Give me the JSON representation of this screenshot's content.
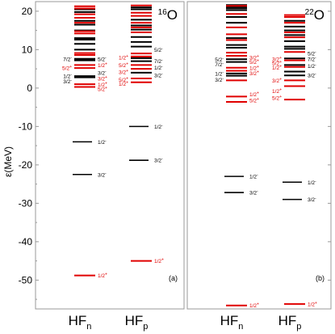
{
  "figure": {
    "y_axis_label": "ε(MeV)",
    "y_ticks": [
      "20",
      "10",
      "0",
      "-10",
      "-20",
      "-30",
      "-40",
      "-50"
    ],
    "colors": {
      "neutral": "#000000",
      "positive_parity": "#e00000",
      "frame": "#999999"
    }
  },
  "chart_data": {
    "type": "scatter",
    "ylim": [
      -57.5,
      22.5
    ],
    "panels": [
      {
        "id": "a",
        "tag": "(a)",
        "nucleus_mass": "16",
        "nucleus_symbol": "O",
        "columns": [
          {
            "id": "n",
            "label_main": "HF",
            "label_sub": "n",
            "levels_black": [
              20.5,
              19.8,
              17.5,
              16.5,
              15.0,
              13.0,
              12.6,
              11.5,
              10.0,
              7.6,
              7.2,
              3.1,
              2.8
            ],
            "levels_red": [
              21.3,
              20.7,
              19.2,
              18.3,
              17.0,
              14.8,
              14.2,
              9.1,
              8.6,
              6.0,
              5.2,
              1.0,
              0.3,
              -48.8
            ],
            "labels": [
              {
                "text": "7/2",
                "sup": "-",
                "y": 7.6,
                "side": "left",
                "color": "black"
              },
              {
                "text": "5/2",
                "sup": "-",
                "y": 7.6,
                "side": "right",
                "color": "black"
              },
              {
                "text": "5/2",
                "sup": "+",
                "y": 5.2,
                "side": "left",
                "color": "red"
              },
              {
                "text": "1/2",
                "sup": "+",
                "y": 6.0,
                "side": "right",
                "color": "red"
              },
              {
                "text": "1/2",
                "sup": "-",
                "y": 3.1,
                "side": "left",
                "color": "black"
              },
              {
                "text": "3/2",
                "sup": "-",
                "y": 4.0,
                "side": "right",
                "color": "black"
              },
              {
                "text": "3/2",
                "sup": "-",
                "y": 1.8,
                "side": "left",
                "color": "black"
              },
              {
                "text": "3/2",
                "sup": "+",
                "y": 2.5,
                "side": "right",
                "color": "red"
              },
              {
                "text": "1/2",
                "sup": "+",
                "y": 0.9,
                "side": "right",
                "color": "red"
              },
              {
                "text": "5/2",
                "sup": "+",
                "y": -0.2,
                "side": "right",
                "color": "red"
              },
              {
                "text": "1/2",
                "sup": "-",
                "y": -14.0,
                "side": "right",
                "color": "black"
              },
              {
                "text": "3/2",
                "sup": "-",
                "y": -22.5,
                "side": "right",
                "color": "black"
              },
              {
                "text": "1/2",
                "sup": "+",
                "y": -48.8,
                "side": "right",
                "color": "red"
              }
            ],
            "deep_black": [
              -14.0,
              -22.5
            ]
          },
          {
            "id": "p",
            "label_main": "HF",
            "label_sub": "p",
            "levels_black": [
              21.0,
              20.5,
              17.8,
              16.3,
              15.2,
              13.3,
              12.0,
              10.8,
              7.8,
              7.0,
              4.0
            ],
            "levels_red": [
              21.5,
              19.6,
              18.8,
              17.0,
              15.8,
              14.5,
              9.0,
              8.2,
              6.0,
              5.0,
              2.5,
              1.5,
              -45.0
            ],
            "labels": [
              {
                "text": "5/2",
                "sup": "-",
                "y": 10.0,
                "side": "right",
                "color": "black"
              },
              {
                "text": "1/2",
                "sup": "+",
                "y": 8.0,
                "side": "left",
                "color": "red"
              },
              {
                "text": "7/2",
                "sup": "-",
                "y": 7.0,
                "side": "right",
                "color": "black"
              },
              {
                "text": "5/2",
                "sup": "+",
                "y": 6.0,
                "side": "left",
                "color": "red"
              },
              {
                "text": "1/2",
                "sup": "-",
                "y": 5.3,
                "side": "right",
                "color": "black"
              },
              {
                "text": "3/2",
                "sup": "+",
                "y": 4.2,
                "side": "left",
                "color": "red"
              },
              {
                "text": "3/2",
                "sup": "-",
                "y": 3.3,
                "side": "right",
                "color": "black"
              },
              {
                "text": "5/2",
                "sup": "+",
                "y": 2.2,
                "side": "left",
                "color": "red"
              },
              {
                "text": "1/2",
                "sup": "+",
                "y": 1.1,
                "side": "left",
                "color": "red"
              },
              {
                "text": "1/2",
                "sup": "-",
                "y": -10.0,
                "side": "right",
                "color": "black"
              },
              {
                "text": "3/2",
                "sup": "-",
                "y": -18.8,
                "side": "right",
                "color": "black"
              },
              {
                "text": "1/2",
                "sup": "+",
                "y": -45.0,
                "side": "right",
                "color": "red"
              }
            ],
            "deep_black": [
              -10.0,
              -18.8
            ]
          }
        ]
      },
      {
        "id": "b",
        "tag": "(b)",
        "nucleus_mass": "22",
        "nucleus_symbol": "O",
        "columns": [
          {
            "id": "n",
            "label_main": "HF",
            "label_sub": "n",
            "levels_black": [
              21.6,
              21.2,
              20.8,
              20.3,
              18.5,
              17.0,
              13.0,
              11.2,
              10.5,
              7.5,
              6.8,
              3.8,
              3.2
            ],
            "levels_red": [
              21.4,
              19.3,
              15.8,
              14.0,
              12.5,
              9.2,
              8.4,
              5.3,
              4.5,
              2.0,
              -2.2,
              -3.6,
              -56.6
            ],
            "labels": [
              {
                "text": "5/2",
                "sup": "-",
                "y": 7.5,
                "side": "left",
                "color": "black"
              },
              {
                "text": "3/2",
                "sup": "+",
                "y": 8.0,
                "side": "right",
                "color": "red"
              },
              {
                "text": "7/2",
                "sup": "-",
                "y": 6.2,
                "side": "left",
                "color": "black"
              },
              {
                "text": "5/2",
                "sup": "+",
                "y": 6.8,
                "side": "right",
                "color": "red"
              },
              {
                "text": "1/2",
                "sup": "-",
                "y": 3.8,
                "side": "left",
                "color": "black"
              },
              {
                "text": "1/2",
                "sup": "+",
                "y": 5.2,
                "side": "right",
                "color": "red"
              },
              {
                "text": "3/2",
                "sup": "-",
                "y": 2.2,
                "side": "left",
                "color": "black"
              },
              {
                "text": "3/2",
                "sup": "+",
                "y": 3.9,
                "side": "right",
                "color": "red"
              },
              {
                "text": "1/2",
                "sup": "+",
                "y": -1.6,
                "side": "right",
                "color": "red"
              },
              {
                "text": "5/2",
                "sup": "+",
                "y": -3.2,
                "side": "right",
                "color": "red"
              },
              {
                "text": "1/2",
                "sup": "-",
                "y": -23.0,
                "side": "right",
                "color": "black"
              },
              {
                "text": "3/2",
                "sup": "-",
                "y": -27.2,
                "side": "right",
                "color": "black"
              },
              {
                "text": "1/2",
                "sup": "+",
                "y": -56.6,
                "side": "right",
                "color": "red"
              }
            ],
            "deep_black": [
              -23.0,
              -27.2
            ]
          },
          {
            "id": "p",
            "label_main": "HF",
            "label_sub": "p",
            "levels_black": [
              17.5,
              16.0,
              15.0,
              13.8,
              12.2,
              10.8,
              10.2,
              7.7,
              6.0,
              4.3,
              3.3
            ],
            "levels_red": [
              19.0,
              18.5,
              17.0,
              14.5,
              13.2,
              9.4,
              7.2,
              5.5,
              2.0,
              0.5,
              -3.0,
              -56.2
            ],
            "labels": [
              {
                "text": "5/2",
                "sup": "-",
                "y": 9.0,
                "side": "right",
                "color": "black"
              },
              {
                "text": "3/2",
                "sup": "+",
                "y": 7.6,
                "side": "left",
                "color": "red"
              },
              {
                "text": "7/2",
                "sup": "-",
                "y": 7.6,
                "side": "right",
                "color": "black"
              },
              {
                "text": "5/2",
                "sup": "+",
                "y": 6.5,
                "side": "left",
                "color": "red"
              },
              {
                "text": "1/2",
                "sup": "-",
                "y": 5.8,
                "side": "right",
                "color": "black"
              },
              {
                "text": "1/2",
                "sup": "+",
                "y": 5.3,
                "side": "left",
                "color": "red"
              },
              {
                "text": "3/2",
                "sup": "-",
                "y": 3.3,
                "side": "right",
                "color": "black"
              },
              {
                "text": "3/2",
                "sup": "+",
                "y": 2.0,
                "side": "left",
                "color": "red"
              },
              {
                "text": "1/2",
                "sup": "+",
                "y": -0.8,
                "side": "left",
                "color": "red"
              },
              {
                "text": "5/2",
                "sup": "+",
                "y": -2.6,
                "side": "left",
                "color": "red"
              },
              {
                "text": "1/2",
                "sup": "-",
                "y": -24.5,
                "side": "right",
                "color": "black"
              },
              {
                "text": "3/2",
                "sup": "-",
                "y": -29.0,
                "side": "right",
                "color": "black"
              },
              {
                "text": "1/2",
                "sup": "+",
                "y": -56.2,
                "side": "right",
                "color": "red"
              }
            ],
            "deep_black": [
              -24.5,
              -29.0
            ]
          }
        ]
      }
    ]
  }
}
